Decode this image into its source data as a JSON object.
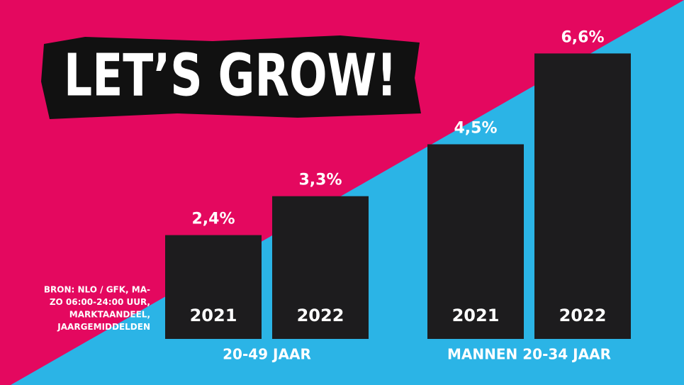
{
  "chart_data": {
    "type": "bar",
    "title": "LET’S GROW!",
    "note": [
      "BRON: NLO / GFK, MA-",
      "ZO 06:00-24:00 UUR,",
      "MARKTAANDEEL,",
      "JAARGEMIDDELDEN"
    ],
    "color": "#1d1c1e",
    "groups": [
      {
        "name": "20-49 JAAR",
        "categories": [
          "2021",
          "2022"
        ],
        "values": [
          2.4,
          3.3
        ],
        "value_labels": [
          "2,4%",
          "3,3%"
        ]
      },
      {
        "name": "MANNEN 20-34 JAAR",
        "categories": [
          "2021",
          "2022"
        ],
        "values": [
          4.5,
          6.6
        ],
        "value_labels": [
          "4,5%",
          "6,6%"
        ]
      }
    ]
  }
}
